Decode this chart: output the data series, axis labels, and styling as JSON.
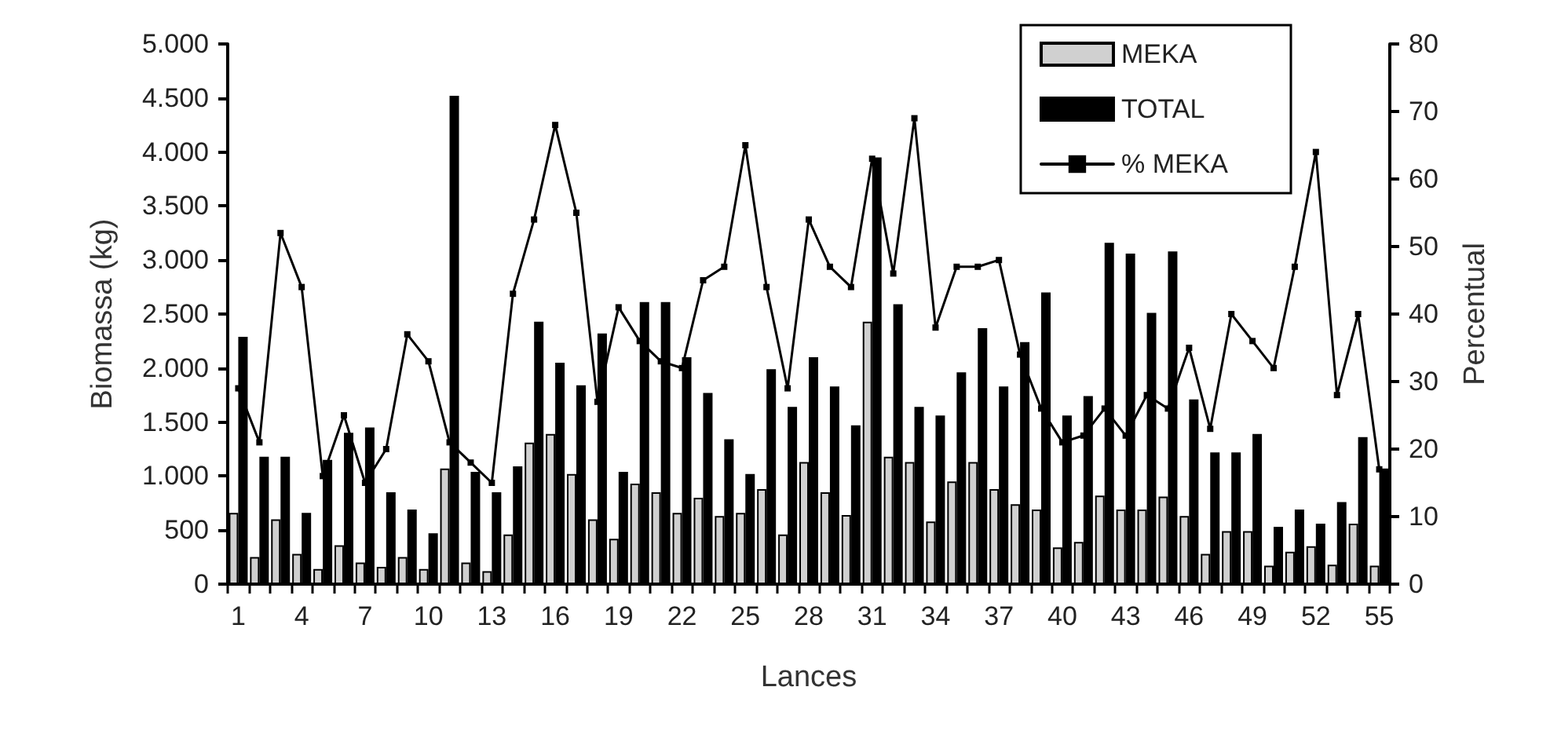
{
  "chart_data": {
    "type": "bar",
    "xlabel": "Lances",
    "ylabel": "Biomassa (kg)",
    "y2label": "Percentual",
    "categories": [
      "1",
      null,
      null,
      "4",
      null,
      null,
      "7",
      null,
      null,
      "10",
      null,
      null,
      "13",
      null,
      null,
      "16",
      null,
      null,
      "19",
      null,
      null,
      "22",
      null,
      null,
      "25",
      null,
      null,
      "28",
      null,
      null,
      "31",
      null,
      null,
      "34",
      null,
      null,
      "37",
      null,
      null,
      "40",
      null,
      null,
      "43",
      null,
      null,
      "46",
      null,
      null,
      "49",
      null,
      null,
      "52",
      null,
      null,
      "55"
    ],
    "series": [
      {
        "name": "MEKA",
        "color": "#d0d0d0",
        "values": [
          660,
          250,
          600,
          280,
          140,
          360,
          200,
          160,
          250,
          140,
          1070,
          200,
          120,
          460,
          1310,
          1390,
          1020,
          600,
          420,
          930,
          850,
          660,
          800,
          630,
          660,
          880,
          460,
          1130,
          850,
          640,
          2430,
          1180,
          1130,
          580,
          950,
          1130,
          880,
          740,
          690,
          340,
          390,
          820,
          690,
          690,
          810,
          630,
          280,
          490,
          490,
          170,
          300,
          350,
          180,
          560,
          170
        ]
      },
      {
        "name": "TOTAL",
        "color": "#000000",
        "values": [
          2290,
          1180,
          1180,
          660,
          1150,
          1400,
          1450,
          850,
          690,
          470,
          4520,
          1040,
          850,
          1090,
          2430,
          2050,
          1840,
          2320,
          1040,
          2610,
          2610,
          2100,
          1770,
          1340,
          1020,
          1990,
          1640,
          2100,
          1830,
          1470,
          3950,
          2590,
          1640,
          1560,
          1960,
          2370,
          1830,
          2240,
          2700,
          1560,
          1740,
          3160,
          3060,
          2510,
          3080,
          1710,
          1220,
          1220,
          1390,
          530,
          690,
          560,
          760,
          1360,
          1070
        ]
      },
      {
        "name": "% MEKA",
        "type": "line",
        "axis": "y2",
        "color": "#000000",
        "values": [
          29,
          21,
          52,
          44,
          16,
          25,
          15,
          20,
          37,
          33,
          21,
          18,
          15,
          43,
          54,
          68,
          55,
          27,
          41,
          36,
          33,
          32,
          45,
          47,
          65,
          44,
          29,
          54,
          47,
          44,
          63,
          46,
          69,
          38,
          47,
          47,
          48,
          34,
          26,
          21,
          22,
          26,
          22,
          28,
          26,
          35,
          23,
          40,
          36,
          32,
          47,
          64,
          28,
          40,
          17
        ]
      }
    ],
    "marker": "square",
    "line_style": "solid",
    "ylim": [
      0,
      5000
    ],
    "yticks": [
      0,
      500,
      {
        "value": 1000,
        "label": "1.000"
      },
      {
        "value": 1500,
        "label": "1.500"
      },
      {
        "value": 2000,
        "label": "2.000"
      },
      {
        "value": 2500,
        "label": "2.500"
      },
      {
        "value": 3000,
        "label": "3.000"
      },
      {
        "value": 3500,
        "label": "3.500"
      },
      {
        "value": 4000,
        "label": "4.000"
      },
      {
        "value": 4500,
        "label": "4.500"
      },
      {
        "value": 5000,
        "label": "5.000"
      }
    ],
    "y2lim": [
      0,
      80
    ],
    "y2ticks": [
      0,
      10,
      20,
      30,
      40,
      50,
      60,
      70,
      80
    ],
    "legend": "top right"
  }
}
